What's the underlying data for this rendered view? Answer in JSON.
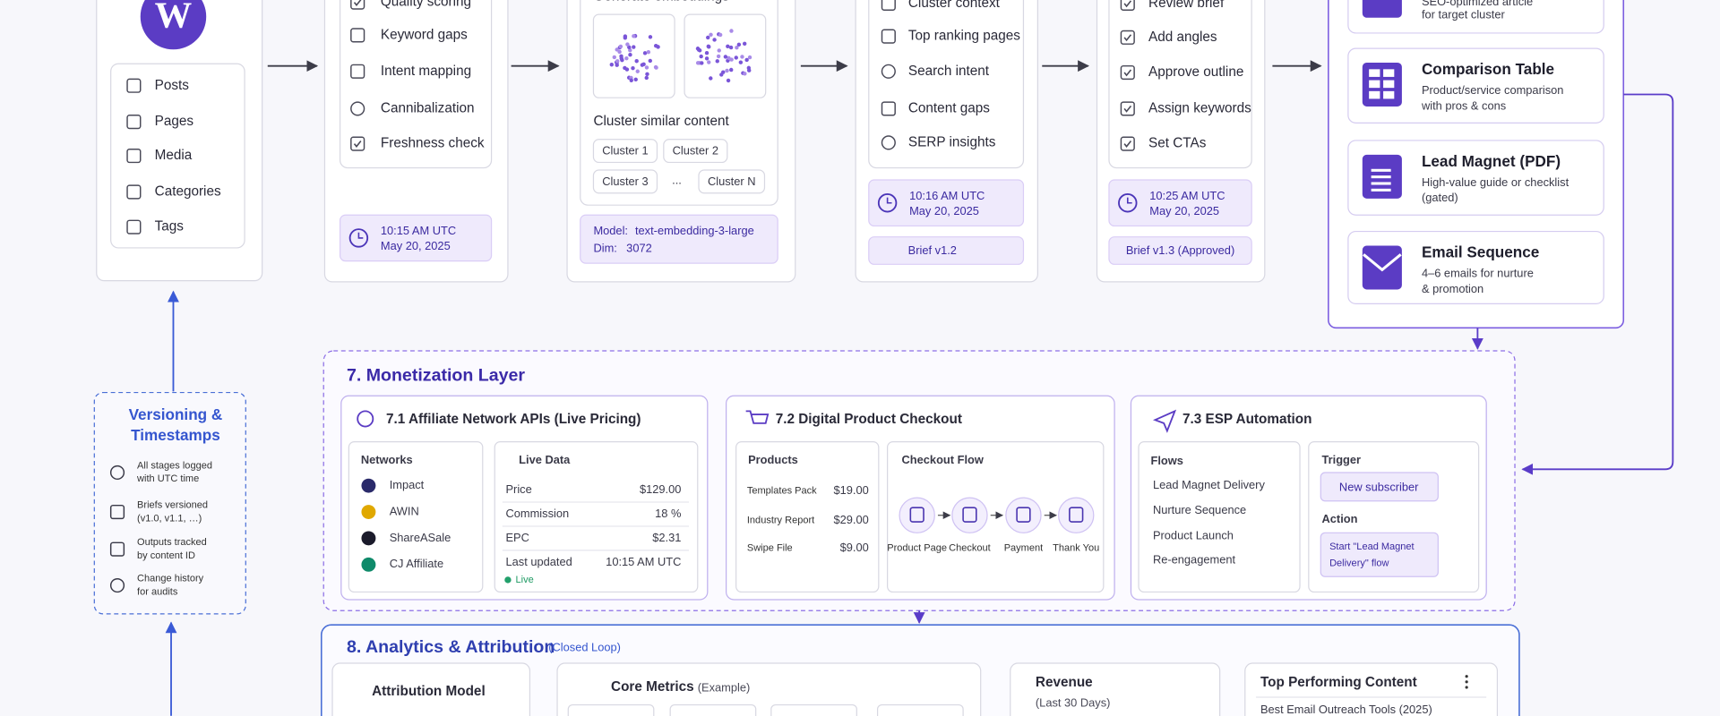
{
  "wordpress": {
    "items": [
      "Posts",
      "Pages",
      "Media",
      "Categories",
      "Tags"
    ]
  },
  "audit": {
    "items": [
      "Quality scoring",
      "Keyword gaps",
      "Intent mapping",
      "Cannibalization",
      "Freshness check"
    ],
    "timestamp": {
      "time": "10:15 AM UTC",
      "date": "May 20, 2025"
    }
  },
  "embeddings": {
    "title": "Generate embeddings",
    "subtitle": "Cluster similar content",
    "clusters": [
      "Cluster 1",
      "Cluster 2",
      "Cluster 3",
      "...",
      "Cluster N"
    ],
    "model_label": "Model:",
    "model": "text-embedding-3-large",
    "dim_label": "Dim:",
    "dim": "3072"
  },
  "brief": {
    "items": [
      "Cluster context",
      "Top ranking pages",
      "Search intent",
      "Content gaps",
      "SERP insights"
    ],
    "timestamp": {
      "time": "10:16 AM UTC",
      "date": "May 20, 2025"
    },
    "version": "Brief  v1.2"
  },
  "review": {
    "items": [
      "Review brief",
      "Add angles",
      "Approve outline",
      "Assign keywords",
      "Set CTAs"
    ],
    "timestamp": {
      "time": "10:25 AM UTC",
      "date": "May 20, 2025"
    },
    "version": "Brief  v1.3 (Approved)"
  },
  "outputs": {
    "cards": [
      {
        "desc": [
          "SEO-optimized article",
          "for target cluster"
        ]
      },
      {
        "title": "Comparison Table",
        "desc": [
          "Product/service comparison",
          "with pros & cons"
        ]
      },
      {
        "title": "Lead Magnet (PDF)",
        "desc": [
          "High-value guide or checklist",
          "(gated)"
        ]
      },
      {
        "title": "Email Sequence",
        "desc": [
          "4–6 emails for nurture",
          "& promotion"
        ]
      }
    ]
  },
  "versioning": {
    "title": [
      "Versioning &",
      "Timestamps"
    ],
    "items": [
      [
        "All stages logged",
        "with UTC time"
      ],
      [
        "Briefs versioned",
        "(v1.0, v1.1, …)"
      ],
      [
        "Outputs tracked",
        "by content ID"
      ],
      [
        "Change history",
        "for audits"
      ]
    ]
  },
  "monetization": {
    "title": "7.  Monetization Layer",
    "affiliate": {
      "title": "7.1  Affiliate Network APIs (Live Pricing)",
      "networks_title": "Networks",
      "networks": [
        "Impact",
        "AWIN",
        "ShareASale",
        "CJ Affiliate"
      ],
      "live_title": "Live Data",
      "rows": [
        [
          "Price",
          "$129.00"
        ],
        [
          "Commission",
          "18 %"
        ],
        [
          "EPC",
          "$2.31"
        ],
        [
          "Last updated",
          "10:15 AM UTC"
        ]
      ],
      "status": "Live"
    },
    "checkout": {
      "title": "7.2  Digital Product Checkout",
      "products_title": "Products",
      "products": [
        [
          "Templates Pack",
          "$19.00"
        ],
        [
          "Industry Report",
          "$29.00"
        ],
        [
          "Swipe File",
          "$9.00"
        ]
      ],
      "flow_title": "Checkout Flow",
      "steps": [
        "Product Page",
        "Checkout",
        "Payment",
        "Thank You"
      ]
    },
    "esp": {
      "title": "7.3  ESP Automation",
      "flows_title": "Flows",
      "flows": [
        "Lead Magnet Delivery",
        "Nurture Sequence",
        "Product Launch",
        "Re-engagement"
      ],
      "trigger_title": "Trigger",
      "trigger": "New subscriber",
      "action_title": "Action",
      "action": [
        "Start \"Lead Magnet",
        "Delivery\" flow"
      ]
    }
  },
  "analytics": {
    "title": "8.  Analytics & Attribution",
    "subtitle": "(Closed Loop)",
    "attribution": "Attribution Model",
    "metrics": "Core Metrics",
    "metrics_note": "(Example)",
    "revenue": "Revenue",
    "revenue_note": "(Last 30 Days)",
    "top": "Top Performing Content",
    "top_first": "Best Email Outreach Tools (2025)"
  }
}
